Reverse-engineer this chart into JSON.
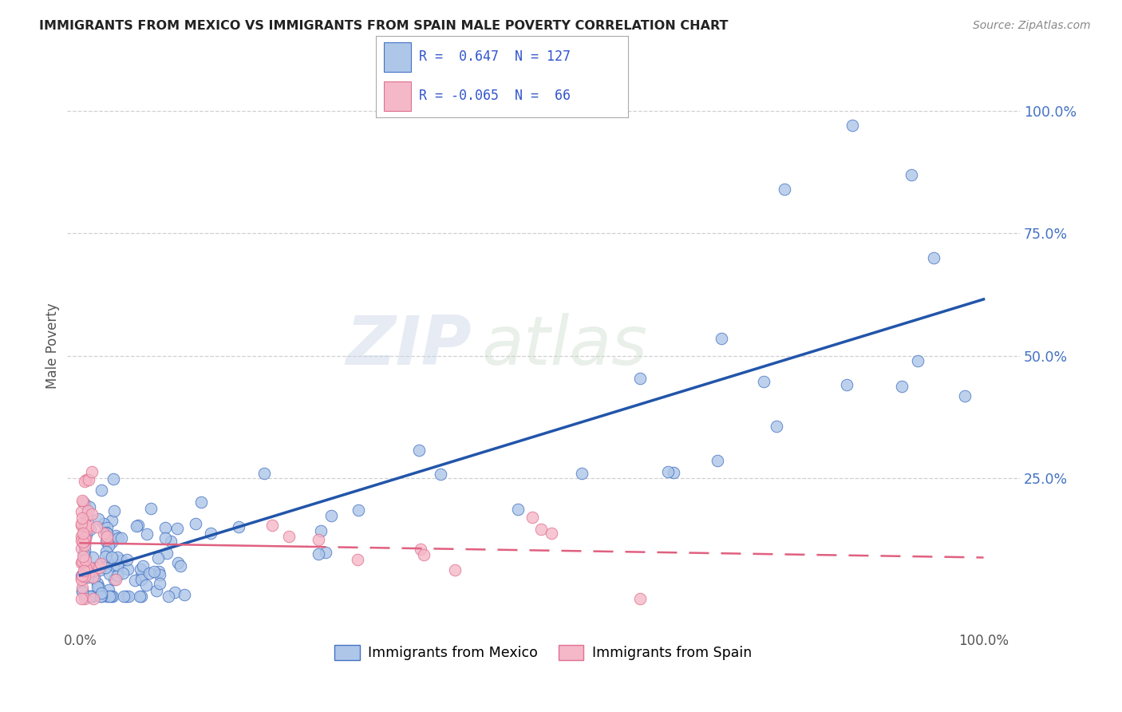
{
  "title": "IMMIGRANTS FROM MEXICO VS IMMIGRANTS FROM SPAIN MALE POVERTY CORRELATION CHART",
  "source": "Source: ZipAtlas.com",
  "ylabel": "Male Poverty",
  "legend_label1": "Immigrants from Mexico",
  "legend_label2": "Immigrants from Spain",
  "mexico_fill_color": "#aec6e8",
  "mexico_edge_color": "#4472c4",
  "spain_fill_color": "#f4b8c8",
  "spain_edge_color": "#e07090",
  "mexico_line_color": "#2255aa",
  "spain_solid_line_color": "#e06080",
  "spain_dash_line_color": "#e06080",
  "background_color": "#ffffff",
  "ytick_color": "#4472c4",
  "xtick_color": "#555555",
  "grid_color": "#cccccc",
  "title_color": "#222222",
  "ylabel_color": "#555555",
  "source_color": "#888888",
  "watermark_color": "#d0d8e8",
  "legend_box_color": "#aaaaaa"
}
